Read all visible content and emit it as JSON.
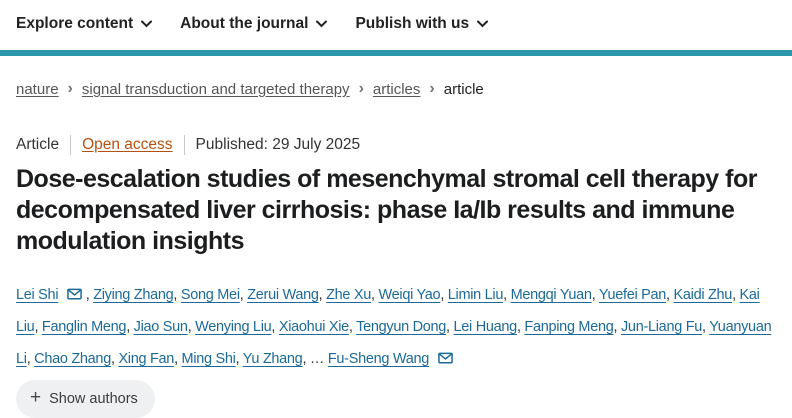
{
  "nav": {
    "items": [
      {
        "label": "Explore content"
      },
      {
        "label": "About the journal"
      },
      {
        "label": "Publish with us"
      }
    ]
  },
  "breadcrumb": {
    "items": [
      {
        "label": "nature"
      },
      {
        "label": "signal transduction and targeted therapy"
      },
      {
        "label": "articles"
      },
      {
        "label": "article"
      }
    ]
  },
  "meta": {
    "type": "Article",
    "access": "Open access",
    "published": "Published: 29 July 2025"
  },
  "title": "Dose-escalation studies of mesenchymal stromal cell therapy for decompensated liver cirrhosis: phase Ia/Ib results and immune modulation insights",
  "authors": {
    "list": [
      {
        "name": "Lei Shi",
        "email": true,
        "sep": ", "
      },
      {
        "name": "Ziying Zhang",
        "sep": ", "
      },
      {
        "name": "Song Mei",
        "sep": ", "
      },
      {
        "name": "Zerui Wang",
        "sep": ", "
      },
      {
        "name": "Zhe Xu",
        "sep": ", "
      },
      {
        "name": "Weiqi Yao",
        "sep": ", "
      },
      {
        "name": "Limin Liu",
        "sep": ", "
      },
      {
        "name": "Mengqi Yuan",
        "sep": ", "
      },
      {
        "name": "Yuefei Pan",
        "sep": ", "
      },
      {
        "name": "Kaidi Zhu",
        "sep": ", "
      },
      {
        "name": "Kai Liu",
        "sep": ", "
      },
      {
        "name": "Fanglin Meng",
        "sep": ", "
      },
      {
        "name": "Jiao Sun",
        "sep": ", "
      },
      {
        "name": "Wenying Liu",
        "sep": ", "
      },
      {
        "name": "Xiaohui Xie",
        "sep": ", "
      },
      {
        "name": "Tengyun Dong",
        "sep": ", "
      },
      {
        "name": "Lei Huang",
        "sep": ", "
      },
      {
        "name": "Fanping Meng",
        "sep": ", "
      },
      {
        "name": "Jun-Liang Fu",
        "sep": ", "
      },
      {
        "name": "Yuanyuan Li",
        "sep": ", "
      },
      {
        "name": "Chao Zhang",
        "sep": ", "
      },
      {
        "name": "Xing Fan",
        "sep": ", "
      },
      {
        "name": "Ming Shi",
        "sep": ", "
      },
      {
        "name": "Yu Zhang",
        "sep": ", "
      },
      {
        "ellipsis": "…",
        "sep": " "
      },
      {
        "name": "Fu-Sheng Wang",
        "email": true,
        "sep": ""
      }
    ],
    "show_authors_label": "Show authors"
  },
  "icons": {
    "chevron_down": "⌄",
    "chevron_right": "›",
    "email": "✉",
    "plus": "+",
    "ellipsis": "…"
  },
  "colors": {
    "accent_teal": "#2e96aa",
    "link_blue": "#1c6a9a",
    "open_access": "#b6500f",
    "text_dark": "#222222"
  }
}
